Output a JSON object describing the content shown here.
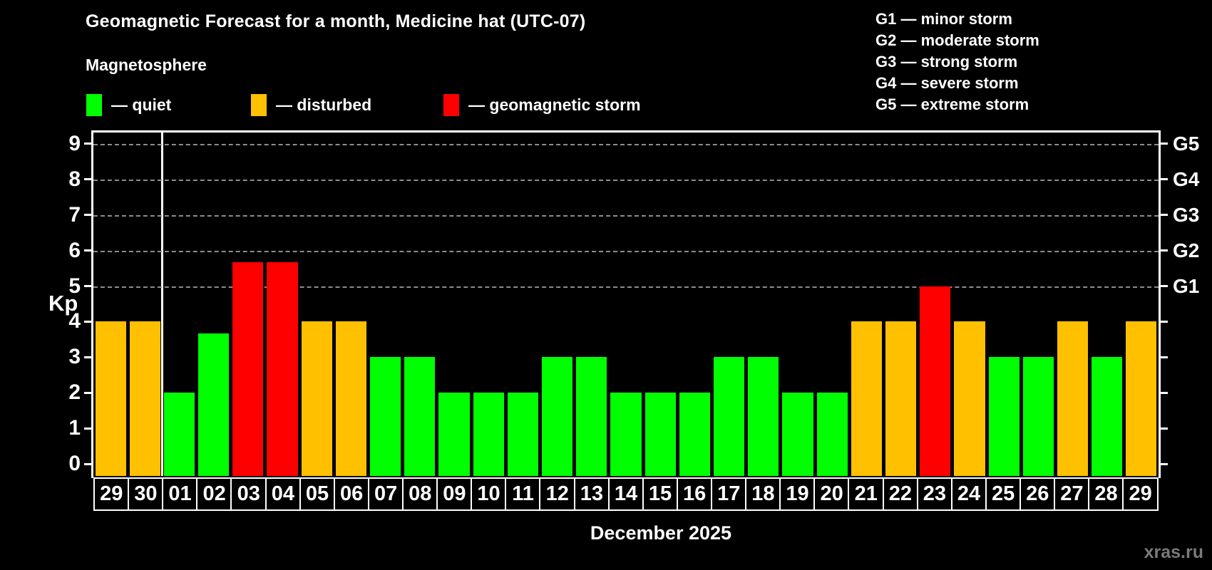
{
  "header": {
    "title": "Geomagnetic Forecast for a month, Medicine hat (UTC-07)",
    "subtitle": "Magnetosphere"
  },
  "legend": {
    "items": [
      {
        "key": "quiet",
        "label": "— quiet"
      },
      {
        "key": "disturbed",
        "label": "— disturbed"
      },
      {
        "key": "storm",
        "label": "— geomagnetic storm"
      }
    ]
  },
  "g_legend": {
    "items": [
      "G1 — minor storm",
      "G2 — moderate storm",
      "G3 — strong storm",
      "G4 — severe storm",
      "G5 — extreme storm"
    ]
  },
  "palette": {
    "quiet": "#00ff00",
    "disturbed": "#ffc000",
    "storm": "#ff0000",
    "grid": "#8c8c8c",
    "axis": "#ffffff",
    "watermark": "#7a7a7a"
  },
  "chart_data": {
    "type": "bar",
    "title": "Geomagnetic Forecast for a month, Medicine hat (UTC-07)",
    "ylabel": "Kp",
    "xlabel": "December 2025",
    "ylim": [
      -0.34,
      9.38
    ],
    "yticks": [
      0,
      1,
      2,
      3,
      4,
      5,
      6,
      7,
      8,
      9
    ],
    "gridlines_kp": [
      5,
      6,
      7,
      8,
      9
    ],
    "right_axis_labels": [
      {
        "kp": 5,
        "label": "G1"
      },
      {
        "kp": 6,
        "label": "G2"
      },
      {
        "kp": 7,
        "label": "G3"
      },
      {
        "kp": 8,
        "label": "G4"
      },
      {
        "kp": 9,
        "label": "G5"
      }
    ],
    "month_separator_after_index": 1,
    "bars": [
      {
        "date": "29",
        "value": 4,
        "status": "disturbed"
      },
      {
        "date": "30",
        "value": 4,
        "status": "disturbed"
      },
      {
        "date": "01",
        "value": 2,
        "status": "quiet"
      },
      {
        "date": "02",
        "value": 3.67,
        "status": "quiet"
      },
      {
        "date": "03",
        "value": 5.67,
        "status": "storm"
      },
      {
        "date": "04",
        "value": 5.67,
        "status": "storm"
      },
      {
        "date": "05",
        "value": 4,
        "status": "disturbed"
      },
      {
        "date": "06",
        "value": 4,
        "status": "disturbed"
      },
      {
        "date": "07",
        "value": 3,
        "status": "quiet"
      },
      {
        "date": "08",
        "value": 3,
        "status": "quiet"
      },
      {
        "date": "09",
        "value": 2,
        "status": "quiet"
      },
      {
        "date": "10",
        "value": 2,
        "status": "quiet"
      },
      {
        "date": "11",
        "value": 2,
        "status": "quiet"
      },
      {
        "date": "12",
        "value": 3,
        "status": "quiet"
      },
      {
        "date": "13",
        "value": 3,
        "status": "quiet"
      },
      {
        "date": "14",
        "value": 2,
        "status": "quiet"
      },
      {
        "date": "15",
        "value": 2,
        "status": "quiet"
      },
      {
        "date": "16",
        "value": 2,
        "status": "quiet"
      },
      {
        "date": "17",
        "value": 3,
        "status": "quiet"
      },
      {
        "date": "18",
        "value": 3,
        "status": "quiet"
      },
      {
        "date": "19",
        "value": 2,
        "status": "quiet"
      },
      {
        "date": "20",
        "value": 2,
        "status": "quiet"
      },
      {
        "date": "21",
        "value": 4,
        "status": "disturbed"
      },
      {
        "date": "22",
        "value": 4,
        "status": "disturbed"
      },
      {
        "date": "23",
        "value": 5,
        "status": "storm"
      },
      {
        "date": "24",
        "value": 4,
        "status": "disturbed"
      },
      {
        "date": "25",
        "value": 3,
        "status": "quiet"
      },
      {
        "date": "26",
        "value": 3,
        "status": "quiet"
      },
      {
        "date": "27",
        "value": 4,
        "status": "disturbed"
      },
      {
        "date": "28",
        "value": 3,
        "status": "quiet"
      },
      {
        "date": "29",
        "value": 4,
        "status": "disturbed"
      }
    ]
  },
  "footer": {
    "xlabel": "December 2025",
    "watermark": "xras.ru"
  }
}
